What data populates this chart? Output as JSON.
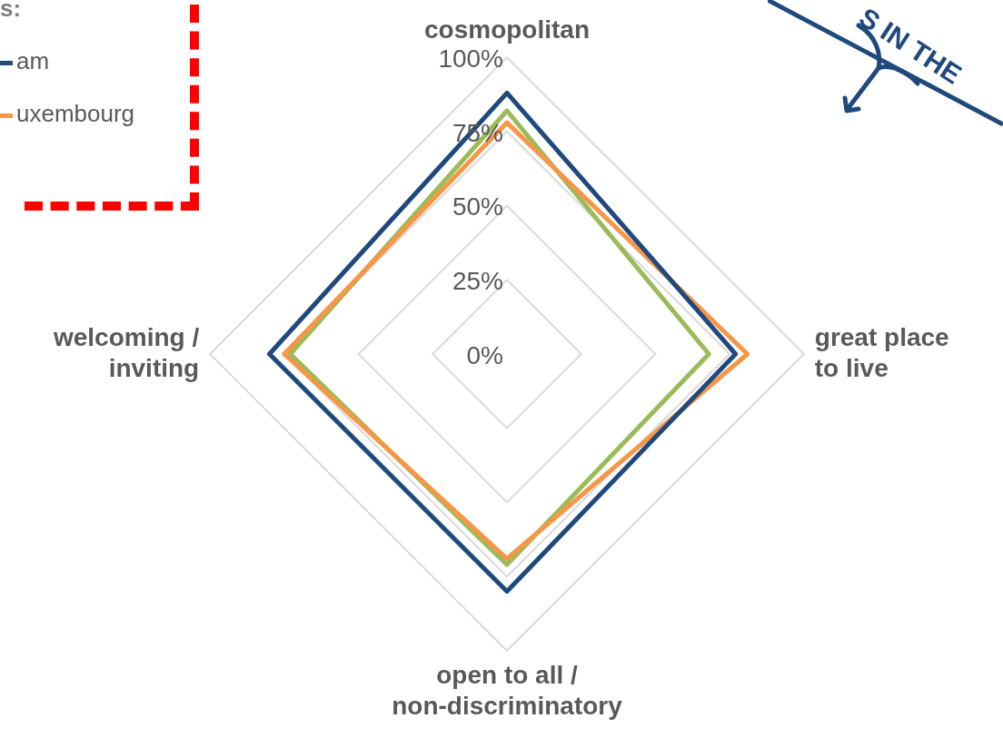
{
  "chart_data": {
    "type": "radar",
    "legend_title": "s:",
    "legend": "top left",
    "categories": [
      "cosmopolitan",
      "great place\nto live",
      "open to all /\nnon-discriminatory",
      "welcoming /\ninviting"
    ],
    "series": [
      {
        "name": "am",
        "color": "#1f497d",
        "values": [
          0.88,
          0.77,
          0.8,
          0.8
        ]
      },
      {
        "name": "uxembourg",
        "color": "#f79646",
        "values": [
          0.78,
          0.81,
          0.69,
          0.75
        ]
      },
      {
        "color": "#9bbb59",
        "values": [
          0.82,
          0.68,
          0.71,
          0.73
        ]
      }
    ],
    "ylim": [
      0,
      1
    ],
    "yticks": [
      {
        "value": 0,
        "label": "0%"
      },
      {
        "value": 0.25,
        "label": "25%"
      },
      {
        "value": 0.5,
        "label": "50%"
      },
      {
        "value": 0.75,
        "label": "75%"
      },
      {
        "value": 1,
        "label": "100%"
      }
    ],
    "grid": true,
    "marker": "none",
    "line_style": "solid",
    "annotations": [
      "S IN THE"
    ]
  }
}
